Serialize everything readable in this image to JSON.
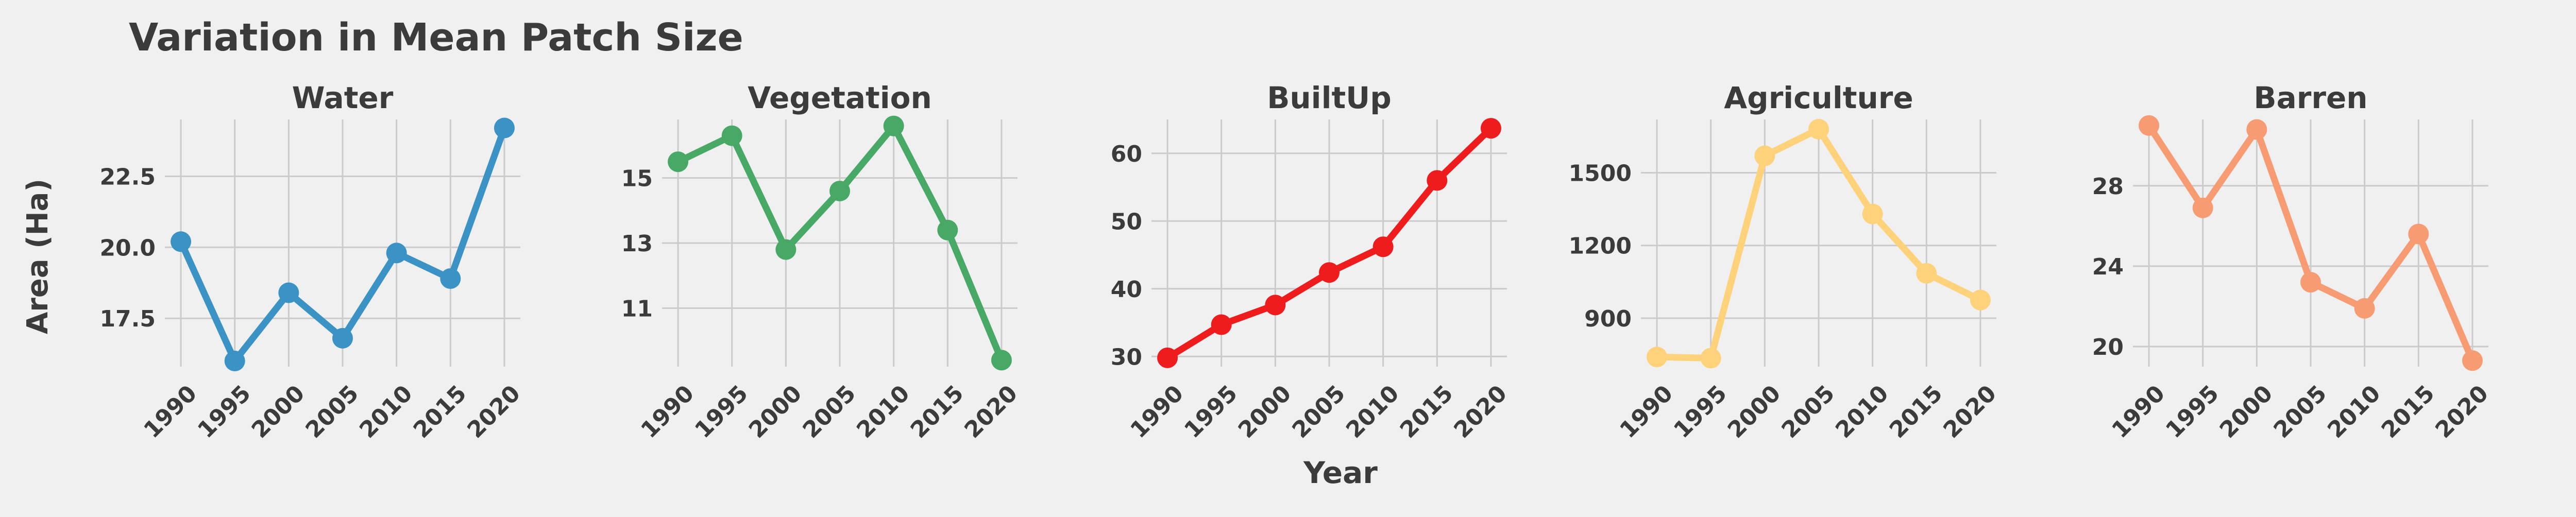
{
  "chart_data": {
    "type": "line",
    "title": "Variation in Mean Patch Size",
    "xlabel": "Year",
    "ylabel": "Area (Ha)",
    "grid": true,
    "x": [
      "1990",
      "1995",
      "2000",
      "2005",
      "2010",
      "2015",
      "2020"
    ],
    "panels": [
      {
        "title": "Water",
        "color": "#3a92c5",
        "values": [
          20.2,
          16.0,
          18.4,
          16.8,
          19.8,
          18.9,
          24.2
        ],
        "ylim": [
          15.8,
          24.5
        ],
        "yticks": [
          17.5,
          20.0,
          22.5
        ],
        "ytick_labels": [
          "17.5",
          "20.0",
          "22.5"
        ]
      },
      {
        "title": "Vegetation",
        "color": "#48a866",
        "values": [
          15.5,
          16.3,
          12.8,
          14.6,
          16.6,
          13.4,
          9.4
        ],
        "ylim": [
          9.2,
          16.8
        ],
        "yticks": [
          11,
          13,
          15
        ],
        "ytick_labels": [
          "11",
          "13",
          "15"
        ]
      },
      {
        "title": "BuiltUp",
        "color": "#ee1c1c",
        "values": [
          29.8,
          34.7,
          37.6,
          42.4,
          46.2,
          56.0,
          63.7
        ],
        "ylim": [
          28.5,
          65.0
        ],
        "yticks": [
          30,
          40,
          50,
          60
        ],
        "ytick_labels": [
          "30",
          "40",
          "50",
          "60"
        ]
      },
      {
        "title": "Agriculture",
        "color": "#fdd27a",
        "values": [
          740,
          735,
          1570,
          1680,
          1330,
          1085,
          975
        ],
        "ylim": [
          700,
          1720
        ],
        "yticks": [
          900,
          1200,
          1500
        ],
        "ytick_labels": [
          "900",
          "1200",
          "1500"
        ]
      },
      {
        "title": "Barren",
        "color": "#f79b73",
        "values": [
          31.0,
          26.9,
          30.8,
          23.2,
          21.9,
          25.6,
          19.3
        ],
        "ylim": [
          19.0,
          31.3
        ],
        "yticks": [
          20,
          24,
          28
        ],
        "ytick_labels": [
          "20",
          "24",
          "28"
        ]
      }
    ]
  }
}
